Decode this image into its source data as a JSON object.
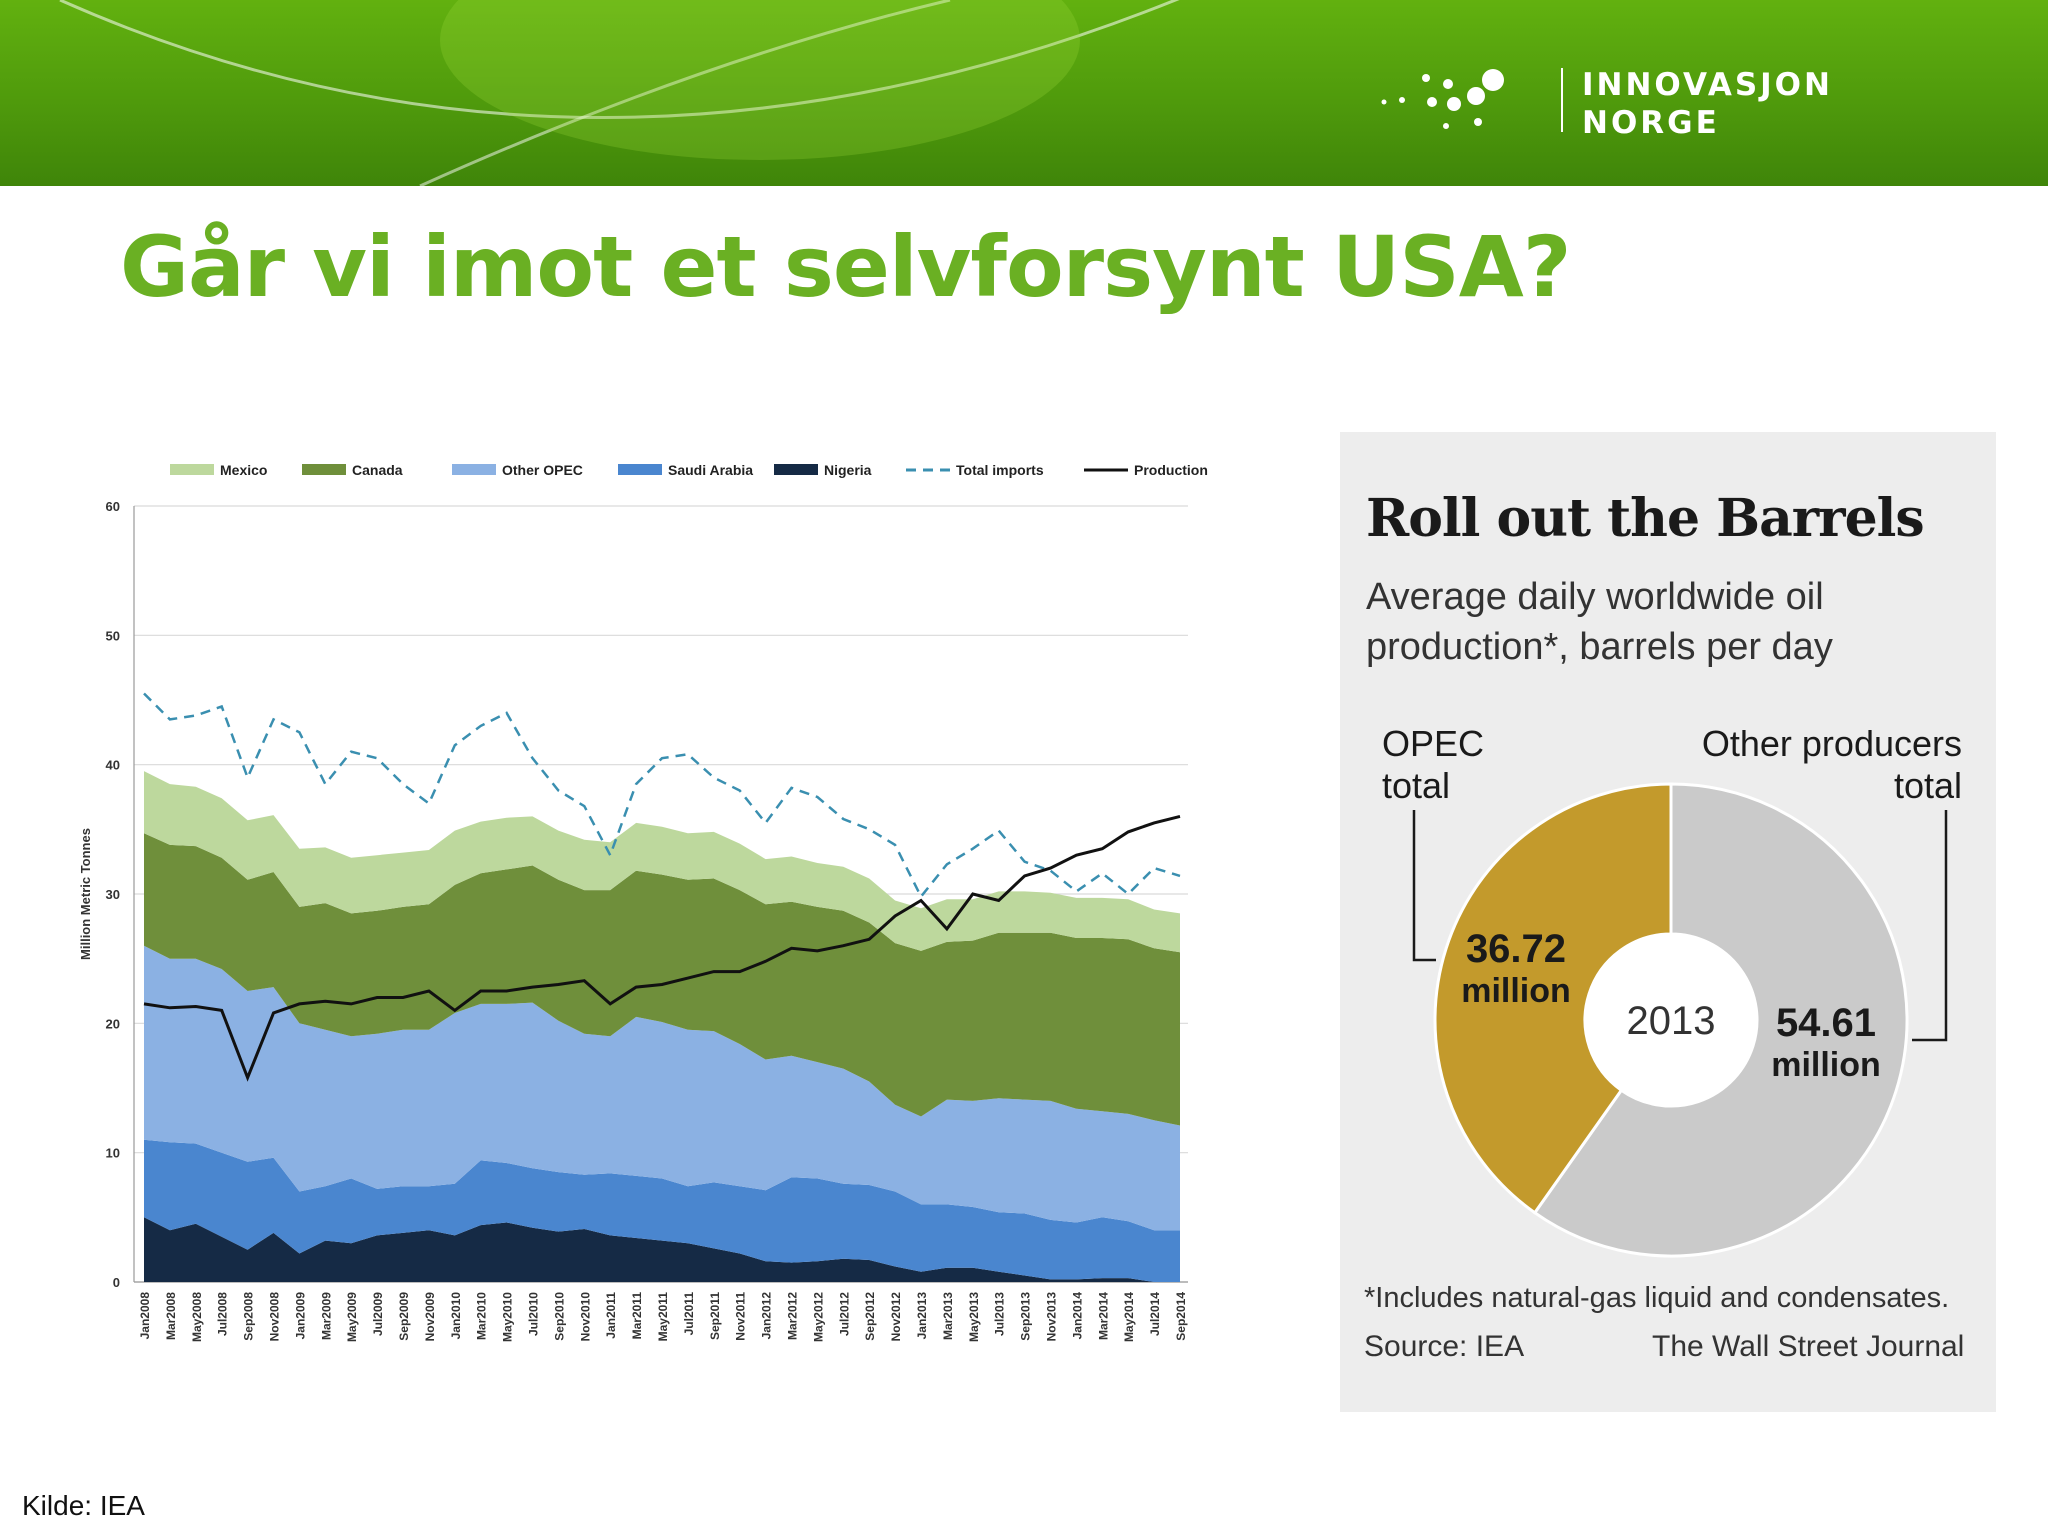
{
  "brand": {
    "logo_line1": "INNOVASJON",
    "logo_line2": "NORGE",
    "green": "#6ab023",
    "banner_green": "#4f9a0c"
  },
  "slide": {
    "title": "Går vi imot et selvforsynt USA?",
    "source_note": "Kilde: IEA"
  },
  "chart_data": [
    {
      "type": "area",
      "ylabel": "Million Metric Tonnes",
      "ylim": [
        0,
        60
      ],
      "yticks": [
        0,
        10,
        20,
        30,
        40,
        50,
        60
      ],
      "grid": true,
      "legend_position": "top",
      "x_labels": [
        "Jan2008",
        "Mar2008",
        "May2008",
        "Jul2008",
        "Sep2008",
        "Nov2008",
        "Jan2009",
        "Mar2009",
        "May2009",
        "Jul2009",
        "Sep2009",
        "Nov2009",
        "Jan2010",
        "Mar2010",
        "May2010",
        "Jul2010",
        "Sep2010",
        "Nov2010",
        "Jan2011",
        "Mar2011",
        "May2011",
        "Jul2011",
        "Sep2011",
        "Nov2011",
        "Jan2012",
        "Mar2012",
        "May2012",
        "Jul2012",
        "Sep2012",
        "Nov2012",
        "Jan2013",
        "Mar2013",
        "May2013",
        "Jul2013",
        "Sep2013",
        "Nov2013",
        "Jan2014",
        "Mar2014",
        "May2014",
        "Jul2014",
        "Sep2014"
      ],
      "stacked_series": [
        {
          "name": "Nigeria",
          "color": "#152a45",
          "values": [
            5.0,
            4.0,
            4.5,
            3.5,
            2.5,
            3.8,
            2.2,
            3.2,
            3.0,
            3.6,
            3.8,
            4.0,
            3.6,
            4.4,
            4.6,
            4.2,
            3.9,
            4.1,
            3.6,
            3.4,
            3.2,
            3.0,
            2.6,
            2.2,
            1.6,
            1.5,
            1.6,
            1.8,
            1.7,
            1.2,
            0.8,
            1.1,
            1.1,
            0.8,
            0.5,
            0.2,
            0.2,
            0.3,
            0.3,
            0.0,
            0.0
          ]
        },
        {
          "name": "Saudi Arabia",
          "color": "#4a86cf",
          "values": [
            6.0,
            6.8,
            6.2,
            6.5,
            6.8,
            5.8,
            4.8,
            4.2,
            5.0,
            3.6,
            3.6,
            3.4,
            4.0,
            5.0,
            4.6,
            4.6,
            4.6,
            4.2,
            4.8,
            4.8,
            4.8,
            4.4,
            5.1,
            5.2,
            5.5,
            6.6,
            6.4,
            5.8,
            5.8,
            5.8,
            5.2,
            4.9,
            4.7,
            4.6,
            4.8,
            4.6,
            4.4,
            4.7,
            4.4,
            4.0,
            4.0
          ]
        },
        {
          "name": "Other OPEC",
          "color": "#8bb1e3",
          "values": [
            15.0,
            14.2,
            14.3,
            14.2,
            13.2,
            13.2,
            13.0,
            12.1,
            11.0,
            12.0,
            12.1,
            12.1,
            13.2,
            12.1,
            12.3,
            12.8,
            11.7,
            10.9,
            10.6,
            12.3,
            12.1,
            12.1,
            11.7,
            11.0,
            10.1,
            9.4,
            9.0,
            8.9,
            8.0,
            6.7,
            6.8,
            8.1,
            8.2,
            8.8,
            8.8,
            9.2,
            8.8,
            8.2,
            8.3,
            8.5,
            8.1
          ]
        },
        {
          "name": "Canada",
          "color": "#6f8f3b",
          "values": [
            8.7,
            8.8,
            8.7,
            8.6,
            8.6,
            8.9,
            9.0,
            9.8,
            9.5,
            9.5,
            9.5,
            9.7,
            9.9,
            10.1,
            10.4,
            10.6,
            10.9,
            11.1,
            11.3,
            11.3,
            11.4,
            11.6,
            11.8,
            11.9,
            12.0,
            11.9,
            12.0,
            12.2,
            12.3,
            12.5,
            12.8,
            12.2,
            12.4,
            12.8,
            12.9,
            13.0,
            13.2,
            13.4,
            13.5,
            13.3,
            13.4
          ]
        },
        {
          "name": "Mexico",
          "color": "#bdd89d",
          "values": [
            4.8,
            4.7,
            4.6,
            4.6,
            4.6,
            4.4,
            4.5,
            4.3,
            4.3,
            4.3,
            4.2,
            4.2,
            4.2,
            4.0,
            4.0,
            3.8,
            3.8,
            3.9,
            3.7,
            3.7,
            3.7,
            3.6,
            3.6,
            3.6,
            3.5,
            3.5,
            3.4,
            3.4,
            3.4,
            3.3,
            3.3,
            3.3,
            3.2,
            3.2,
            3.2,
            3.1,
            3.1,
            3.1,
            3.1,
            3.0,
            3.0
          ]
        }
      ],
      "line_series": [
        {
          "name": "Total imports",
          "color": "#3a8fb0",
          "style": "dashed",
          "values": [
            45.5,
            43.5,
            43.8,
            44.5,
            39.0,
            43.5,
            42.5,
            38.5,
            41.0,
            40.5,
            38.5,
            37.0,
            41.5,
            43.0,
            44.0,
            40.5,
            38.0,
            36.8,
            33.0,
            38.5,
            40.5,
            40.8,
            39.0,
            38.0,
            35.5,
            38.2,
            37.5,
            35.8,
            35.0,
            33.8,
            29.8,
            32.3,
            33.5,
            34.9,
            32.5,
            31.8,
            30.2,
            31.6,
            30.0,
            32.0,
            31.4
          ]
        },
        {
          "name": "Production",
          "color": "#111111",
          "style": "solid",
          "values": [
            21.5,
            21.2,
            21.3,
            21.0,
            15.8,
            20.8,
            21.5,
            21.7,
            21.5,
            22.0,
            22.0,
            22.5,
            21.0,
            22.5,
            22.5,
            22.8,
            23.0,
            23.3,
            21.5,
            22.8,
            23.0,
            23.5,
            24.0,
            24.0,
            24.8,
            25.8,
            25.6,
            26.0,
            26.5,
            28.3,
            29.5,
            27.3,
            30.0,
            29.5,
            31.4,
            32.0,
            33.0,
            33.5,
            34.8,
            35.5,
            36.0
          ]
        }
      ]
    },
    {
      "type": "pie",
      "title": "Roll out the Barrels",
      "subtitle": "Average daily worldwide oil production*, barrels per day",
      "center_label": "2013",
      "slices": [
        {
          "name_line1": "OPEC",
          "name_line2": "total",
          "value": 36.72,
          "value_label": "36.72",
          "unit_label": "million",
          "color": "#c39a2c"
        },
        {
          "name_line1": "Other producers",
          "name_line2": "total",
          "value": 54.61,
          "value_label": "54.61",
          "unit_label": "million",
          "color": "#cacaca"
        }
      ],
      "footnote": "*Includes natural-gas liquid and condensates.",
      "source": "Source: IEA",
      "publisher": "The Wall Street Journal"
    }
  ]
}
